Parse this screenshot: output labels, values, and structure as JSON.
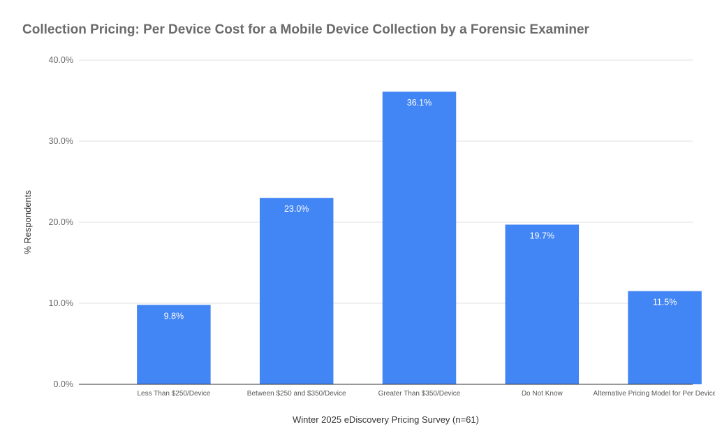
{
  "chart_data": {
    "type": "bar",
    "title": "Collection Pricing: Per Device Cost for a Mobile Device Collection by a Forensic Examiner",
    "xlabel": "Winter 2025 eDiscovery Pricing Survey (n=61)",
    "ylabel": "% Respondents",
    "categories": [
      "Less Than $250/Device",
      "Between $250 and $350/Device",
      "Greater Than $350/Device",
      "Do Not Know",
      "Alternative Pricing Model for Per Device Costs"
    ],
    "values": [
      9.8,
      23.0,
      36.1,
      19.7,
      11.5
    ],
    "data_labels": [
      "9.8%",
      "23.0%",
      "36.1%",
      "19.7%",
      "11.5%"
    ],
    "ylim": [
      0,
      40
    ],
    "yticks": [
      0,
      10,
      20,
      30,
      40
    ],
    "ytick_labels": [
      "0.0%",
      "10.0%",
      "20.0%",
      "30.0%",
      "40.0%"
    ],
    "bar_color": "#4285f4",
    "grid": true,
    "legend": "none"
  }
}
